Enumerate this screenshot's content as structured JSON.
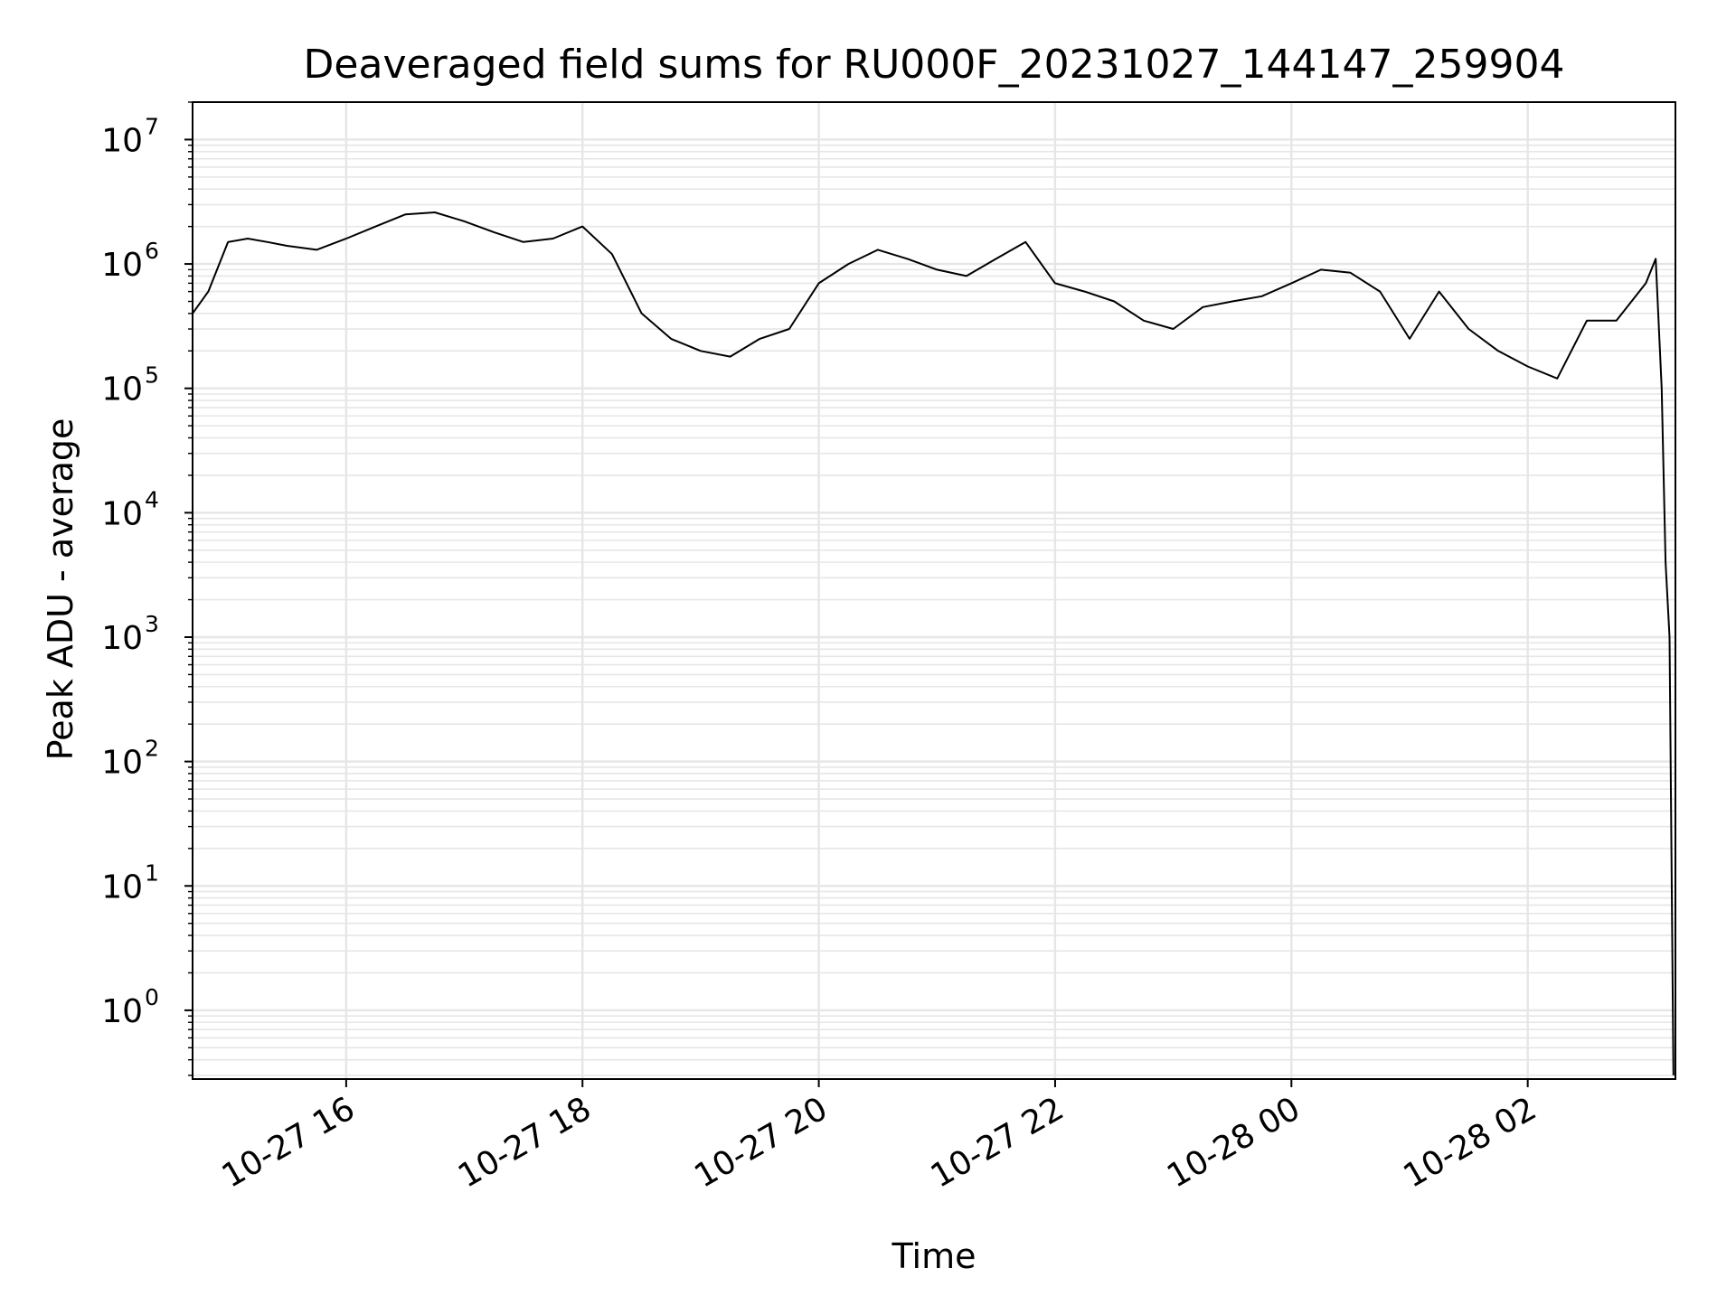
{
  "chart_data": {
    "type": "line",
    "title": "Deaveraged field sums for RU000F_20231027_144147_259904",
    "xlabel": "Time",
    "ylabel": "Peak ADU - average",
    "y_scale": "log",
    "ylim": [
      0.28,
      20000000
    ],
    "xlim": [
      "2023-10-27 14:42",
      "2023-10-28 03:15"
    ],
    "grid": true,
    "line_color": "#000000",
    "grid_color": "#e6e6e6",
    "x_tick_values": [
      "2023-10-27 16:00",
      "2023-10-27 18:00",
      "2023-10-27 20:00",
      "2023-10-27 22:00",
      "2023-10-28 00:00",
      "2023-10-28 02:00"
    ],
    "x_tick_labels": [
      "10-27 16",
      "10-27 18",
      "10-27 20",
      "10-27 22",
      "10-28 00",
      "10-28 02"
    ],
    "y_tick_values": [
      1,
      10,
      100,
      1000,
      10000,
      100000,
      1000000,
      10000000
    ],
    "y_tick_bases": [
      "10",
      "10",
      "10",
      "10",
      "10",
      "10",
      "10",
      "10"
    ],
    "y_tick_exponents": [
      "0",
      "1",
      "2",
      "3",
      "4",
      "5",
      "6",
      "7"
    ],
    "series": [
      {
        "x": [
          "2023-10-27 14:42",
          "2023-10-27 14:50",
          "2023-10-27 15:00",
          "2023-10-27 15:10",
          "2023-10-27 15:20",
          "2023-10-27 15:30",
          "2023-10-27 15:45",
          "2023-10-27 16:00",
          "2023-10-27 16:15",
          "2023-10-27 16:30",
          "2023-10-27 16:45",
          "2023-10-27 17:00",
          "2023-10-27 17:15",
          "2023-10-27 17:30",
          "2023-10-27 17:45",
          "2023-10-27 18:00",
          "2023-10-27 18:15",
          "2023-10-27 18:30",
          "2023-10-27 18:45",
          "2023-10-27 19:00",
          "2023-10-27 19:15",
          "2023-10-27 19:30",
          "2023-10-27 19:45",
          "2023-10-27 20:00",
          "2023-10-27 20:15",
          "2023-10-27 20:30",
          "2023-10-27 20:45",
          "2023-10-27 21:00",
          "2023-10-27 21:15",
          "2023-10-27 21:30",
          "2023-10-27 21:45",
          "2023-10-27 22:00",
          "2023-10-27 22:15",
          "2023-10-27 22:30",
          "2023-10-27 22:45",
          "2023-10-27 23:00",
          "2023-10-27 23:15",
          "2023-10-27 23:30",
          "2023-10-27 23:45",
          "2023-10-28 00:00",
          "2023-10-28 00:15",
          "2023-10-28 00:30",
          "2023-10-28 00:45",
          "2023-10-28 01:00",
          "2023-10-28 01:15",
          "2023-10-28 01:30",
          "2023-10-28 01:45",
          "2023-10-28 02:00",
          "2023-10-28 02:15",
          "2023-10-28 02:30",
          "2023-10-28 02:45",
          "2023-10-28 03:00",
          "2023-10-28 03:05",
          "2023-10-28 03:08",
          "2023-10-28 03:10",
          "2023-10-28 03:12",
          "2023-10-28 03:14"
        ],
        "y": [
          400000,
          600000,
          1500000,
          1600000,
          1500000,
          1400000,
          1300000,
          1600000,
          2000000,
          2500000,
          2600000,
          2200000,
          1800000,
          1500000,
          1600000,
          2000000,
          1200000,
          400000,
          250000,
          200000,
          180000,
          250000,
          300000,
          700000,
          1000000,
          1300000,
          1100000,
          900000,
          800000,
          1100000,
          1500000,
          700000,
          600000,
          500000,
          350000,
          300000,
          450000,
          500000,
          550000,
          700000,
          900000,
          850000,
          600000,
          250000,
          600000,
          300000,
          200000,
          150000,
          120000,
          350000,
          350000,
          700000,
          1100000,
          100000,
          4000,
          1000,
          0.3
        ]
      }
    ]
  }
}
